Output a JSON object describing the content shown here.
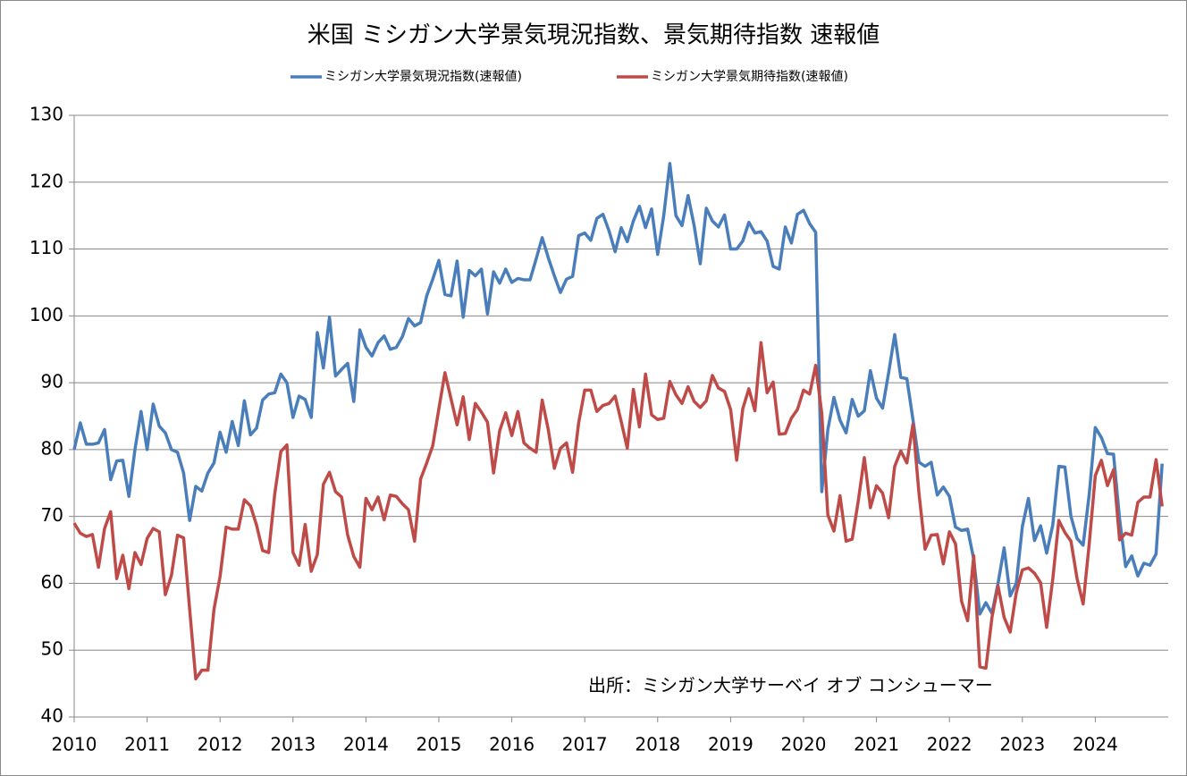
{
  "chart_data": {
    "type": "line",
    "title": "米国  ミシガン大学景気現況指数、景気期待指数 速報値",
    "annotation": "出所：ミシガン大学サーベイ オブ コンシューマー",
    "categories": [
      "2010",
      null,
      null,
      null,
      null,
      null,
      null,
      null,
      null,
      null,
      null,
      null,
      "2011",
      null,
      null,
      null,
      null,
      null,
      null,
      null,
      null,
      null,
      null,
      null,
      "2012",
      null,
      null,
      null,
      null,
      null,
      null,
      null,
      null,
      null,
      null,
      null,
      "2013",
      null,
      null,
      null,
      null,
      null,
      null,
      null,
      null,
      null,
      null,
      null,
      "2014",
      null,
      null,
      null,
      null,
      null,
      null,
      null,
      null,
      null,
      null,
      null,
      "2015",
      null,
      null,
      null,
      null,
      null,
      null,
      null,
      null,
      null,
      null,
      null,
      "2016",
      null,
      null,
      null,
      null,
      null,
      null,
      null,
      null,
      null,
      null,
      null,
      "2017",
      null,
      null,
      null,
      null,
      null,
      null,
      null,
      null,
      null,
      null,
      null,
      "2018",
      null,
      null,
      null,
      null,
      null,
      null,
      null,
      null,
      null,
      null,
      null,
      "2019",
      null,
      null,
      null,
      null,
      null,
      null,
      null,
      null,
      null,
      null,
      null,
      "2020",
      null,
      null,
      null,
      null,
      null,
      null,
      null,
      null,
      null,
      null,
      null,
      "2021",
      null,
      null,
      null,
      null,
      null,
      null,
      null,
      null,
      null,
      null,
      null,
      "2022",
      null,
      null,
      null,
      null,
      null,
      null,
      null,
      null,
      null,
      null,
      null,
      "2023",
      null,
      null,
      null,
      null,
      null,
      null,
      null,
      null,
      null,
      null,
      null,
      "2024",
      null,
      null,
      null,
      null,
      null,
      null,
      null,
      null,
      null,
      null,
      null
    ],
    "series": [
      {
        "name": "ミシガン大学景気現況指数(速報値)",
        "color": "#4a7ebb",
        "values": [
          80,
          84,
          80.8,
          80.8,
          81,
          83,
          75.5,
          78.3,
          78.4,
          73,
          80,
          85.7,
          80,
          86.8,
          83.5,
          82.5,
          80,
          79.6,
          76.5,
          69.4,
          74.5,
          73.8,
          76.5,
          78,
          82.6,
          79.6,
          84.2,
          80.6,
          87.3,
          82.2,
          83.2,
          87.4,
          88.3,
          88.5,
          91.3,
          90,
          84.8,
          88,
          87.5,
          84.8,
          97.5,
          92.2,
          99.8,
          91,
          92,
          92.9,
          87.2,
          97.9,
          95.3,
          94,
          96,
          97,
          95,
          95.3,
          96.9,
          99.6,
          98.5,
          99,
          103,
          105.5,
          108.3,
          103.2,
          103,
          108.2,
          99.8,
          106.8,
          106,
          107,
          100.3,
          106.6,
          104.9,
          107,
          105,
          105.6,
          105.4,
          105.4,
          108.5,
          111.7,
          108.7,
          106,
          103.5,
          105.5,
          105.9,
          112,
          112.4,
          111.3,
          114.6,
          115.2,
          112.7,
          109.6,
          113.2,
          111.1,
          114.2,
          116.4,
          113.2,
          116,
          109.2,
          115,
          122.8,
          115,
          113.5,
          118,
          113.5,
          107.8,
          116.1,
          114.2,
          113.3,
          115.1,
          110,
          110,
          111.2,
          114,
          112.4,
          112.6,
          111.2,
          107.4,
          107,
          113.3,
          110.9,
          115.2,
          115.8,
          113.8,
          112.5,
          73.7,
          83,
          87.8,
          84.4,
          82.5,
          87.5,
          85,
          85.8,
          91.8,
          87.7,
          86.2,
          91.5,
          97.2,
          90.8,
          90.6,
          84.5,
          78.1,
          77.5,
          78.1,
          73.2,
          74.4,
          73,
          68.4,
          67.9,
          68.1,
          63.6,
          55.4,
          57.1,
          55.5,
          60,
          65.3,
          58.1,
          60,
          68.5,
          72.7,
          66.4,
          68.6,
          64.5,
          68.7,
          77.5,
          77.4,
          70,
          66.7,
          65.7,
          73.3,
          83.3,
          81.8,
          79.4,
          79.3,
          69.6,
          62.5,
          64.1,
          61.1,
          63,
          62.7,
          64.4,
          77.9
        ]
      },
      {
        "name": "ミシガン大学景気期待指数(速報値)",
        "color": "#be4b48",
        "values": [
          69,
          67.5,
          67,
          67.3,
          62.4,
          68.2,
          70.7,
          60.7,
          64.2,
          59.2,
          64.6,
          62.8,
          66.7,
          68.2,
          67.7,
          58.3,
          61.2,
          67.2,
          66.8,
          56.1,
          45.7,
          47,
          47,
          56.1,
          61,
          68.4,
          68.1,
          68.1,
          72.5,
          71.6,
          68.7,
          64.9,
          64.6,
          73.4,
          79.7,
          80.7,
          64.6,
          62.7,
          68.8,
          61.8,
          64.3,
          74.8,
          76.6,
          73.7,
          72.9,
          67.2,
          64,
          62.4,
          72.7,
          71,
          72.9,
          69.5,
          73.2,
          73,
          71.9,
          71,
          66.3,
          75.6,
          78,
          80.6,
          86.1,
          91.5,
          87.6,
          83.7,
          87.9,
          81.5,
          86.9,
          85.6,
          84.1,
          76.5,
          82.8,
          85.5,
          82.1,
          85.7,
          81,
          80.2,
          79.6,
          87.4,
          83,
          77.2,
          80.2,
          81,
          76.6,
          84,
          88.9,
          88.9,
          85.7,
          86.6,
          86.9,
          88,
          84.2,
          80.2,
          89,
          83.4,
          91.3,
          85.2,
          84.5,
          84.7,
          90.2,
          88.2,
          86.9,
          89.4,
          87.2,
          86.3,
          87.3,
          91.1,
          89.2,
          88.7,
          86,
          78.4,
          86.1,
          89.1,
          85.8,
          96,
          88.5,
          90.1,
          82.3,
          82.4,
          84.7,
          86,
          88.9,
          88.3,
          92.6,
          85.4,
          70.2,
          67.8,
          73.1,
          66.3,
          66.6,
          72.3,
          78.8,
          71.3,
          74.6,
          73.5,
          69.8,
          77.5,
          79.8,
          78,
          83.8,
          73.4,
          65.1,
          67.2,
          67.3,
          62.9,
          67.7,
          65.9,
          57.3,
          54.4,
          64.1,
          47.5,
          47.3,
          54.9,
          59.6,
          54.9,
          52.7,
          58.6,
          62,
          62.3,
          61.5,
          60.1,
          53.4,
          60.6,
          69.4,
          67.6,
          66.3,
          60.7,
          56.9,
          65.9,
          76.1,
          78.4,
          74.6,
          77,
          66.5,
          67.5,
          67.2,
          72.1,
          72.9,
          72.9,
          78.5,
          71.5
        ]
      }
    ],
    "ylim": [
      40,
      130
    ],
    "yticks": [
      40,
      50,
      60,
      70,
      80,
      90,
      100,
      110,
      120,
      130
    ],
    "grid": true
  }
}
